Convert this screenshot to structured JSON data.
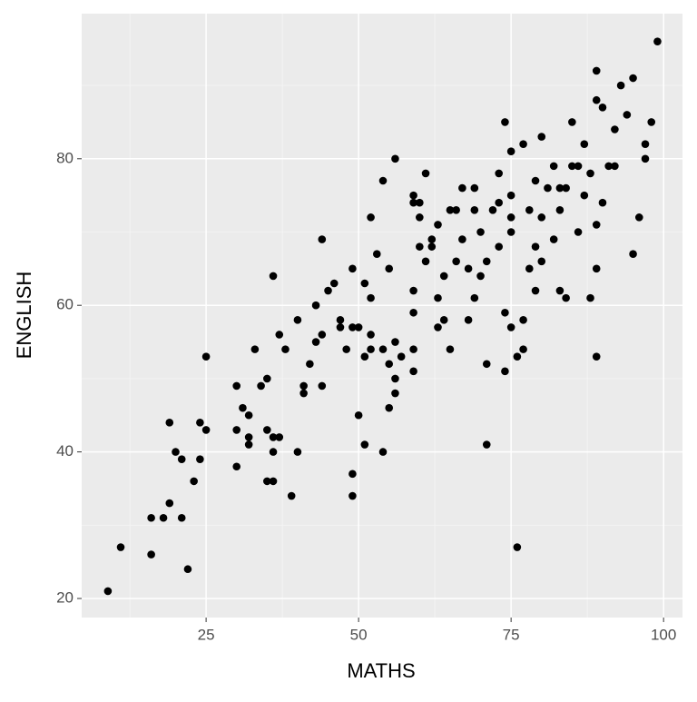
{
  "chart_data": {
    "type": "scatter",
    "x_label": "MATHS",
    "y_label": "ENGLISH",
    "xlim": [
      4.6,
      103.1
    ],
    "ylim": [
      17.4,
      99.8
    ],
    "xticks": [
      25,
      50,
      75,
      100
    ],
    "yticks": [
      20,
      40,
      60,
      80
    ],
    "xminor": [
      12.5,
      37.5,
      62.5,
      87.5
    ],
    "yminor": [
      30,
      50,
      70,
      90
    ],
    "grid": true,
    "color": "#000000",
    "x": [
      8.9,
      11,
      16,
      16,
      18,
      19,
      19,
      20,
      21,
      21,
      22,
      23,
      24,
      24,
      25,
      25,
      30,
      30,
      30,
      31,
      32,
      32,
      32,
      33,
      34,
      35,
      35,
      35,
      36,
      36,
      36,
      36,
      37,
      37,
      38,
      39,
      40,
      40,
      41,
      41,
      42,
      43,
      43,
      44,
      44,
      44,
      45,
      46,
      47,
      47,
      48,
      49,
      49,
      49,
      49,
      50,
      50,
      51,
      51,
      51,
      52,
      52,
      52,
      52,
      53,
      54,
      54,
      54,
      55,
      55,
      55,
      56,
      56,
      56,
      56,
      57,
      59,
      59,
      59,
      59,
      59,
      59,
      60,
      60,
      60,
      61,
      61,
      62,
      62,
      63,
      63,
      63,
      64,
      64,
      65,
      65,
      66,
      66,
      67,
      67,
      68,
      68,
      69,
      69,
      69,
      70,
      70,
      71,
      71,
      71,
      72,
      73,
      73,
      74,
      74,
      74,
      75,
      75,
      75,
      76,
      76,
      77,
      77,
      77,
      78,
      78,
      79,
      79,
      80,
      80,
      81,
      82,
      82,
      83,
      83,
      84,
      84,
      85,
      85,
      86,
      87,
      87,
      88,
      88,
      89,
      89,
      89,
      89,
      90,
      90,
      91,
      92,
      92,
      93,
      94,
      95,
      95,
      96,
      97,
      97,
      98,
      99,
      89,
      80,
      86,
      83,
      75,
      79,
      73,
      75
    ],
    "y": [
      21,
      27,
      31,
      26,
      31,
      44,
      33,
      40,
      39,
      31,
      24,
      36,
      44,
      39,
      43,
      53,
      49,
      43,
      38,
      46,
      42,
      45,
      41,
      54,
      49,
      50,
      43,
      36,
      64,
      42,
      40,
      36,
      56,
      42,
      54,
      34,
      40,
      58,
      49,
      48,
      52,
      60,
      55,
      69,
      49,
      56,
      62,
      63,
      58,
      57,
      54,
      65,
      37,
      34,
      57,
      45,
      57,
      53,
      41,
      63,
      54,
      56,
      61,
      72,
      67,
      77,
      54,
      40,
      65,
      46,
      52,
      80,
      55,
      48,
      50,
      53,
      62,
      59,
      51,
      75,
      54,
      74,
      74,
      72,
      68,
      66,
      78,
      68,
      69,
      71,
      61,
      57,
      58,
      64,
      73,
      54,
      66,
      73,
      69,
      76,
      58,
      65,
      61,
      73,
      76,
      70,
      64,
      52,
      66,
      41,
      73,
      78,
      68,
      59,
      51,
      85,
      72,
      57,
      81,
      53,
      27,
      54,
      58,
      82,
      65,
      73,
      77,
      62,
      83,
      66,
      76,
      69,
      79,
      62,
      73,
      61,
      76,
      85,
      79,
      70,
      75,
      82,
      78,
      61,
      71,
      88,
      53,
      65,
      74,
      87,
      79,
      84,
      79,
      90,
      86,
      91,
      67,
      72,
      82,
      80,
      85,
      96,
      92,
      72,
      79,
      76,
      75,
      68,
      74,
      70
    ]
  }
}
